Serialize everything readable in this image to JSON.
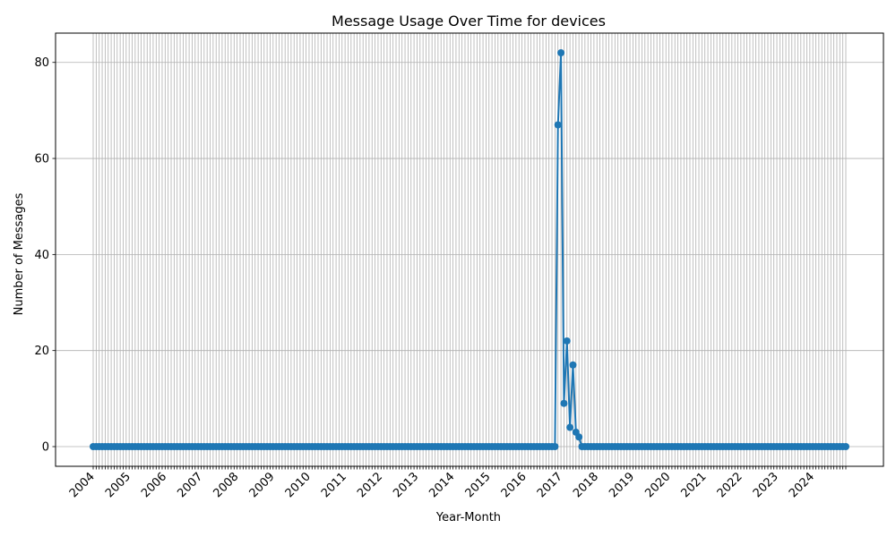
{
  "chart_data": {
    "type": "line",
    "title": "Message Usage Over Time for devices",
    "xlabel": "Year-Month",
    "ylabel": "Number of Messages",
    "ylim": [
      -4.1,
      86.1
    ],
    "y_ticks": [
      0,
      20,
      40,
      60,
      80
    ],
    "grid": true,
    "start": "2004-01",
    "end": "2024-12",
    "x_tick_labels": [
      "2004",
      "2005",
      "2006",
      "2007",
      "2008",
      "2009",
      "2010",
      "2011",
      "2012",
      "2013",
      "2014",
      "2015",
      "2016",
      "2017",
      "2018",
      "2019",
      "2020",
      "2021",
      "2022",
      "2023",
      "2024"
    ],
    "nonzero_values": {
      "2016-12": 67,
      "2017-01": 82,
      "2017-02": 9,
      "2017-03": 22,
      "2017-04": 4,
      "2017-05": 17,
      "2017-06": 3,
      "2017-07": 2
    },
    "default_value": 0,
    "colors": {
      "line": "#1f77b4",
      "grid": "#b0b0b0"
    }
  }
}
